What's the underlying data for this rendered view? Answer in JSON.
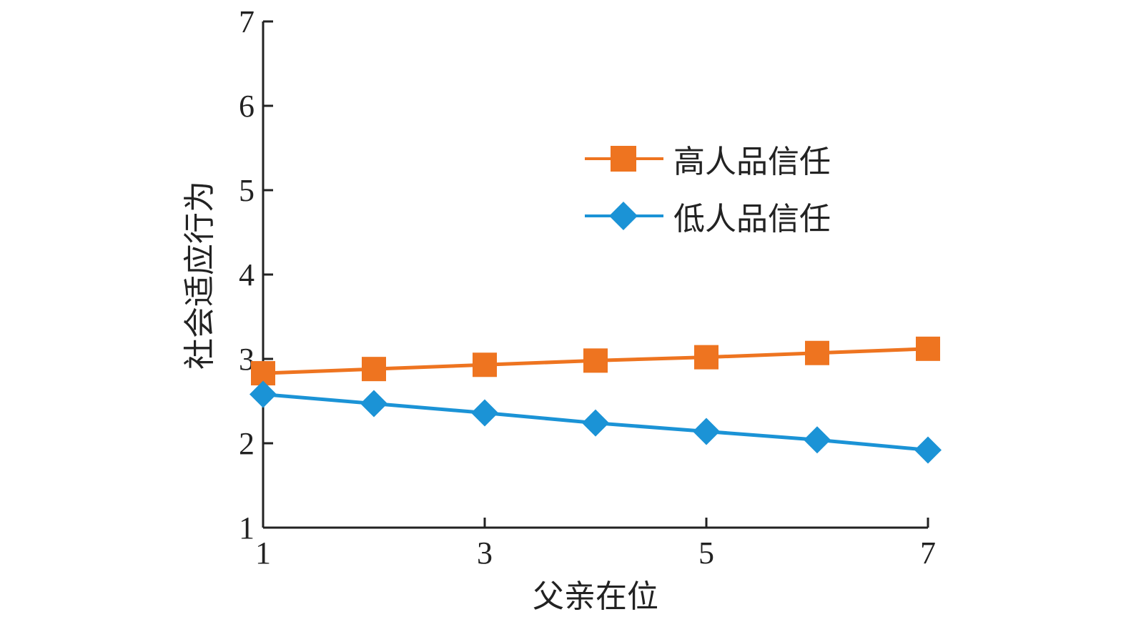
{
  "chart_data": {
    "type": "line",
    "title": "",
    "xlabel": "父亲在位",
    "ylabel": "社会适应行为",
    "xlim": [
      1,
      7
    ],
    "ylim": [
      1,
      7
    ],
    "xticks": [
      1,
      3,
      5,
      7
    ],
    "yticks": [
      1,
      2,
      3,
      4,
      5,
      6,
      7
    ],
    "x": [
      1,
      2,
      3,
      4,
      5,
      6,
      7
    ],
    "grid": false,
    "legend_position": "upper-right",
    "series": [
      {
        "name": "高人品信任",
        "values": [
          2.83,
          2.88,
          2.93,
          2.98,
          3.02,
          3.07,
          3.12
        ],
        "color": "#EE7420",
        "marker": "square"
      },
      {
        "name": "低人品信任",
        "values": [
          2.58,
          2.47,
          2.36,
          2.24,
          2.14,
          2.04,
          1.92
        ],
        "color": "#1B93D6",
        "marker": "diamond"
      }
    ]
  }
}
